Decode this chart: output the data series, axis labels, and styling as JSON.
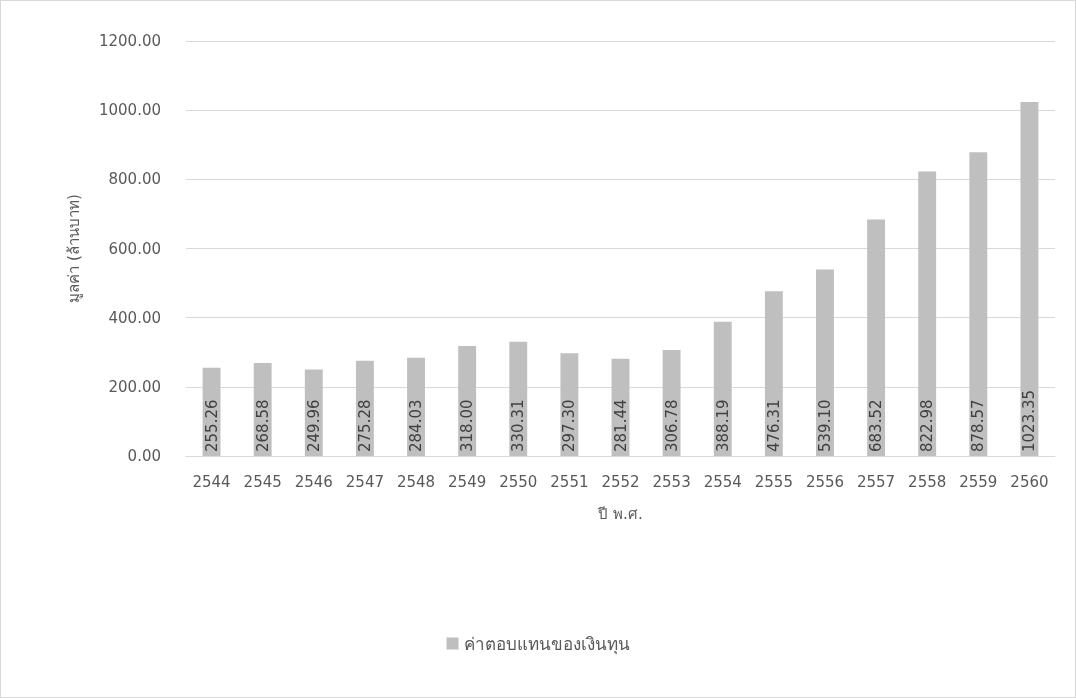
{
  "chart_data": {
    "type": "bar",
    "xlabel": "ปี พ.ศ.",
    "ylabel": "มูลค่า (ล้านบาท)",
    "categories": [
      "2544",
      "2545",
      "2546",
      "2547",
      "2548",
      "2549",
      "2550",
      "2551",
      "2552",
      "2553",
      "2554",
      "2555",
      "2556",
      "2557",
      "2558",
      "2559",
      "2560"
    ],
    "series": [
      {
        "name": "ค่าตอบแทนของเงินทุน",
        "color": "#bfbfbf",
        "values": [
          255.26,
          268.58,
          249.96,
          275.28,
          284.03,
          318.0,
          330.31,
          297.3,
          281.44,
          306.78,
          388.19,
          476.31,
          539.1,
          683.52,
          822.98,
          878.57,
          1023.35
        ],
        "value_labels": [
          "255.26",
          "268.58",
          "249.96",
          "275.28",
          "284.03",
          "318.00",
          "330.31",
          "297.30",
          "281.44",
          "306.78",
          "388.19",
          "476.31",
          "539.10",
          "683.52",
          "822.98",
          "878.57",
          "1023.35"
        ]
      }
    ],
    "ylim": [
      0,
      1200
    ],
    "yticks": [
      {
        "value": 0,
        "label": "0.00"
      },
      {
        "value": 200,
        "label": "200.00"
      },
      {
        "value": 400,
        "label": "400.00"
      },
      {
        "value": 600,
        "label": "600.00"
      },
      {
        "value": 800,
        "label": "800.00"
      },
      {
        "value": 1000,
        "label": "1000.00"
      },
      {
        "value": 1200,
        "label": "1200.00"
      }
    ],
    "grid": "y",
    "legend": "bottom"
  }
}
